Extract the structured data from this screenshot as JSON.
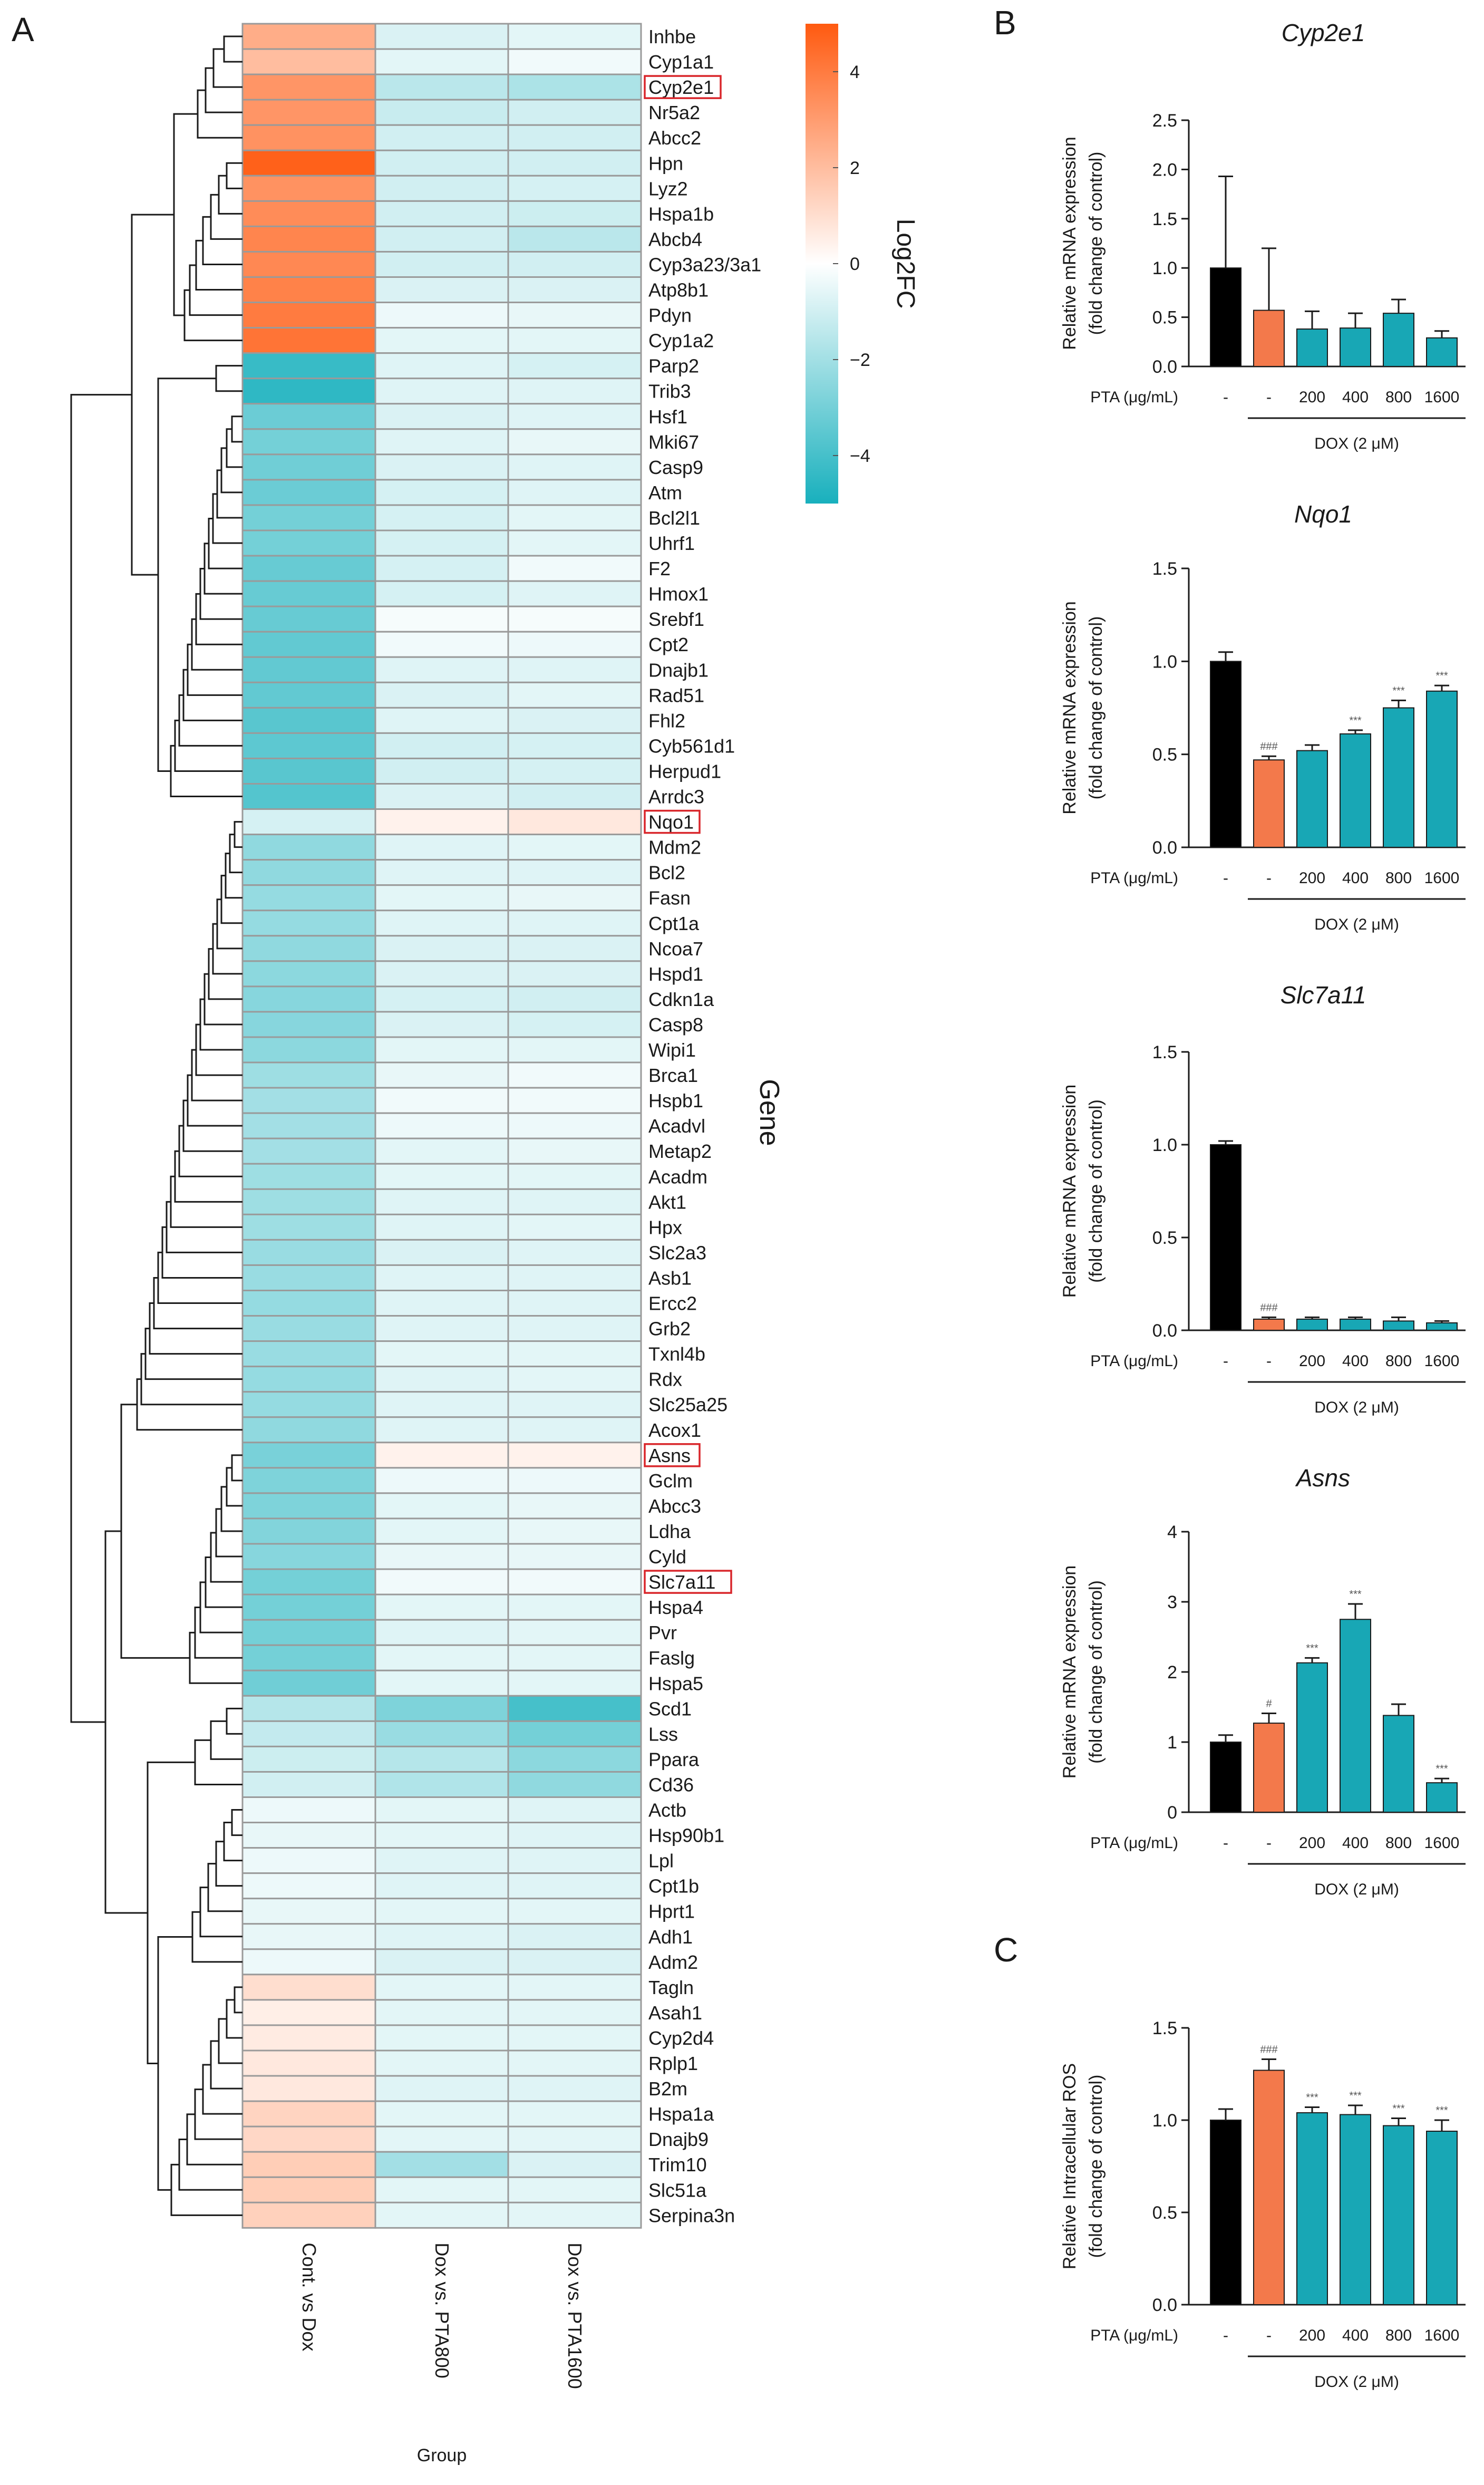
{
  "colors": {
    "black": "#000000",
    "dox": "#f3794b",
    "pta": "#18a7b5",
    "neg": "#18b0bd",
    "pos": "#ff5a10",
    "neutral": "#ffffff",
    "grid": "#9a9a9a",
    "highlight": "#d9262b"
  },
  "chart_data": [
    {
      "type": "heatmap",
      "panel_label": "A",
      "xlabel": "Group",
      "ylabel": "Gene",
      "legend_title": "Log2FC",
      "legend_range": [
        -5,
        5
      ],
      "legend_ticks": [
        "4",
        "2",
        "0",
        "−2",
        "−4"
      ],
      "columns": [
        "Cont. vs Dox",
        "Dox vs. PTA800",
        "Dox vs. PTA1600"
      ],
      "highlighted": [
        "Cyp2e1",
        "Nqo1",
        "Asns",
        "Slc7a11"
      ],
      "rows": [
        {
          "gene": "Inhbe",
          "values": [
            2.5,
            -0.8,
            -0.6
          ]
        },
        {
          "gene": "Cyp1a1",
          "values": [
            2.0,
            -0.6,
            -0.3
          ]
        },
        {
          "gene": "Cyp2e1",
          "values": [
            3.2,
            -1.5,
            -1.8
          ]
        },
        {
          "gene": "Nr5a2",
          "values": [
            3.2,
            -1.2,
            -1.0
          ]
        },
        {
          "gene": "Abcc2",
          "values": [
            3.3,
            -1.0,
            -1.0
          ]
        },
        {
          "gene": "Hpn",
          "values": [
            4.8,
            -1.0,
            -1.0
          ]
        },
        {
          "gene": "Lyz2",
          "values": [
            3.3,
            -1.0,
            -0.9
          ]
        },
        {
          "gene": "Hspa1b",
          "values": [
            3.5,
            -1.0,
            -1.1
          ]
        },
        {
          "gene": "Abcb4",
          "values": [
            3.7,
            -1.0,
            -1.5
          ]
        },
        {
          "gene": "Cyp3a23/3a1",
          "values": [
            3.6,
            -1.0,
            -1.0
          ]
        },
        {
          "gene": "Atp8b1",
          "values": [
            3.8,
            -0.8,
            -0.8
          ]
        },
        {
          "gene": "Pdyn",
          "values": [
            4.0,
            -0.4,
            -0.5
          ]
        },
        {
          "gene": "Cyp1a2",
          "values": [
            4.2,
            -0.6,
            -0.6
          ]
        },
        {
          "gene": "Parp2",
          "values": [
            -4.3,
            -0.7,
            -0.9
          ]
        },
        {
          "gene": "Trib3",
          "values": [
            -4.5,
            -0.7,
            -0.7
          ]
        },
        {
          "gene": "Hsf1",
          "values": [
            -3.2,
            -0.8,
            -0.7
          ]
        },
        {
          "gene": "Mki67",
          "values": [
            -3.0,
            -0.7,
            -0.5
          ]
        },
        {
          "gene": "Casp9",
          "values": [
            -3.1,
            -0.8,
            -0.7
          ]
        },
        {
          "gene": "Atm",
          "values": [
            -3.2,
            -0.9,
            -0.7
          ]
        },
        {
          "gene": "Bcl2l1",
          "values": [
            -3.0,
            -0.9,
            -0.6
          ]
        },
        {
          "gene": "Uhrf1",
          "values": [
            -3.0,
            -0.9,
            -0.6
          ]
        },
        {
          "gene": "F2",
          "values": [
            -3.3,
            -0.9,
            -0.3
          ]
        },
        {
          "gene": "Hmox1",
          "values": [
            -3.3,
            -0.9,
            -0.7
          ]
        },
        {
          "gene": "Srebf1",
          "values": [
            -3.3,
            -0.2,
            -0.2
          ]
        },
        {
          "gene": "Cpt2",
          "values": [
            -3.4,
            -0.3,
            -0.4
          ]
        },
        {
          "gene": "Dnajb1",
          "values": [
            -3.4,
            -0.7,
            -0.7
          ]
        },
        {
          "gene": "Rad51",
          "values": [
            -3.4,
            -0.8,
            -0.6
          ]
        },
        {
          "gene": "Fhl2",
          "values": [
            -3.6,
            -0.7,
            -0.8
          ]
        },
        {
          "gene": "Cyb561d1",
          "values": [
            -3.5,
            -1.0,
            -0.9
          ]
        },
        {
          "gene": "Herpud1",
          "values": [
            -3.6,
            -1.0,
            -0.9
          ]
        },
        {
          "gene": "Arrdc3",
          "values": [
            -3.7,
            -0.8,
            -1.0
          ]
        },
        {
          "gene": "Nqo1",
          "values": [
            -0.9,
            0.4,
            0.7
          ]
        },
        {
          "gene": "Mdm2",
          "values": [
            -2.4,
            -0.7,
            -0.6
          ]
        },
        {
          "gene": "Bcl2",
          "values": [
            -2.4,
            -0.7,
            -0.7
          ]
        },
        {
          "gene": "Fasn",
          "values": [
            -2.3,
            -0.6,
            -0.5
          ]
        },
        {
          "gene": "Cpt1a",
          "values": [
            -2.3,
            -0.7,
            -0.7
          ]
        },
        {
          "gene": "Ncoa7",
          "values": [
            -2.4,
            -0.8,
            -0.8
          ]
        },
        {
          "gene": "Hspd1",
          "values": [
            -2.5,
            -0.8,
            -0.8
          ]
        },
        {
          "gene": "Cdkn1a",
          "values": [
            -2.6,
            -0.9,
            -1.0
          ]
        },
        {
          "gene": "Casp8",
          "values": [
            -2.6,
            -0.8,
            -0.9
          ]
        },
        {
          "gene": "Wipi1",
          "values": [
            -2.5,
            -0.6,
            -0.6
          ]
        },
        {
          "gene": "Brca1",
          "values": [
            -2.1,
            -0.5,
            -0.3
          ]
        },
        {
          "gene": "Hspb1",
          "values": [
            -2.0,
            -0.3,
            -0.3
          ]
        },
        {
          "gene": "Acadvl",
          "values": [
            -2.0,
            -0.4,
            -0.4
          ]
        },
        {
          "gene": "Metap2",
          "values": [
            -2.0,
            -0.6,
            -0.5
          ]
        },
        {
          "gene": "Acadm",
          "values": [
            -2.1,
            -0.6,
            -0.6
          ]
        },
        {
          "gene": "Akt1",
          "values": [
            -2.1,
            -0.7,
            -0.7
          ]
        },
        {
          "gene": "Hpx",
          "values": [
            -2.1,
            -0.7,
            -0.6
          ]
        },
        {
          "gene": "Slc2a3",
          "values": [
            -2.2,
            -0.8,
            -0.7
          ]
        },
        {
          "gene": "Asb1",
          "values": [
            -2.2,
            -0.7,
            -0.7
          ]
        },
        {
          "gene": "Ercc2",
          "values": [
            -2.3,
            -0.7,
            -0.7
          ]
        },
        {
          "gene": "Grb2",
          "values": [
            -2.2,
            -0.7,
            -0.7
          ]
        },
        {
          "gene": "Txnl4b",
          "values": [
            -2.2,
            -0.6,
            -0.6
          ]
        },
        {
          "gene": "Rdx",
          "values": [
            -2.3,
            -0.7,
            -0.6
          ]
        },
        {
          "gene": "Slc25a25",
          "values": [
            -2.3,
            -0.7,
            -0.7
          ]
        },
        {
          "gene": "Acox1",
          "values": [
            -2.4,
            -0.7,
            -0.7
          ]
        },
        {
          "gene": "Asns",
          "values": [
            -2.9,
            0.4,
            0.4
          ]
        },
        {
          "gene": "Gclm",
          "values": [
            -2.8,
            -0.4,
            -0.4
          ]
        },
        {
          "gene": "Abcc3",
          "values": [
            -2.8,
            -0.6,
            -0.5
          ]
        },
        {
          "gene": "Ldha",
          "values": [
            -2.7,
            -0.6,
            -0.5
          ]
        },
        {
          "gene": "Cyld",
          "values": [
            -2.6,
            -0.5,
            -0.5
          ]
        },
        {
          "gene": "Slc7a11",
          "values": [
            -3.0,
            -0.3,
            -0.3
          ]
        },
        {
          "gene": "Hspa4",
          "values": [
            -3.0,
            -0.6,
            -0.6
          ]
        },
        {
          "gene": "Pvr",
          "values": [
            -3.0,
            -0.7,
            -0.6
          ]
        },
        {
          "gene": "Faslg",
          "values": [
            -3.0,
            -0.6,
            -0.6
          ]
        },
        {
          "gene": "Hspa5",
          "values": [
            -3.1,
            -0.6,
            -0.6
          ]
        },
        {
          "gene": "Scd1",
          "values": [
            -1.6,
            -2.8,
            -4.0
          ]
        },
        {
          "gene": "Lss",
          "values": [
            -1.3,
            -2.2,
            -3.0
          ]
        },
        {
          "gene": "Ppara",
          "values": [
            -1.1,
            -1.6,
            -2.5
          ]
        },
        {
          "gene": "Cd36",
          "values": [
            -1.0,
            -1.7,
            -2.4
          ]
        },
        {
          "gene": "Actb",
          "values": [
            -0.4,
            -0.6,
            -0.7
          ]
        },
        {
          "gene": "Hsp90b1",
          "values": [
            -0.5,
            -0.6,
            -0.7
          ]
        },
        {
          "gene": "Lpl",
          "values": [
            -0.4,
            -0.7,
            -0.7
          ]
        },
        {
          "gene": "Cpt1b",
          "values": [
            -0.4,
            -0.7,
            -0.7
          ]
        },
        {
          "gene": "Hprt1",
          "values": [
            -0.5,
            -0.6,
            -0.6
          ]
        },
        {
          "gene": "Adh1",
          "values": [
            -0.5,
            -0.7,
            -0.8
          ]
        },
        {
          "gene": "Adm2",
          "values": [
            -0.4,
            -0.8,
            -0.8
          ]
        },
        {
          "gene": "Tagln",
          "values": [
            1.0,
            -0.6,
            -0.6
          ]
        },
        {
          "gene": "Asah1",
          "values": [
            0.5,
            -0.6,
            -0.6
          ]
        },
        {
          "gene": "Cyp2d4",
          "values": [
            0.6,
            -0.6,
            -0.6
          ]
        },
        {
          "gene": "Rplp1",
          "values": [
            0.7,
            -0.6,
            -0.6
          ]
        },
        {
          "gene": "B2m",
          "values": [
            0.7,
            -0.7,
            -0.7
          ]
        },
        {
          "gene": "Hspa1a",
          "values": [
            1.3,
            -0.6,
            -0.6
          ]
        },
        {
          "gene": "Dnajb9",
          "values": [
            1.2,
            -0.6,
            -0.6
          ]
        },
        {
          "gene": "Trim10",
          "values": [
            1.5,
            -2.0,
            -0.8
          ]
        },
        {
          "gene": "Slc51a",
          "values": [
            1.5,
            -0.6,
            -0.6
          ]
        },
        {
          "gene": "Serpina3n",
          "values": [
            1.4,
            -0.6,
            -0.6
          ]
        }
      ]
    },
    {
      "type": "bar",
      "panel_label": "B",
      "title": "Cyp2e1",
      "ylabel_lines": [
        "Relative mRNA expression",
        "(fold change of control)"
      ],
      "yticks": [
        "0.0",
        "0.5",
        "1.0",
        "1.5",
        "2.0",
        "2.5"
      ],
      "ylim": [
        0,
        2.5
      ],
      "xrow_label": "PTA (μg/mL)",
      "categories": [
        "-",
        "-",
        "200",
        "400",
        "800",
        "1600"
      ],
      "group_label": "DOX (2 μM)",
      "values": [
        1.0,
        0.57,
        0.38,
        0.39,
        0.54,
        0.29
      ],
      "errors": [
        0.93,
        0.63,
        0.18,
        0.15,
        0.14,
        0.07
      ],
      "sig": [
        "",
        "",
        "",
        "",
        "",
        ""
      ]
    },
    {
      "type": "bar",
      "panel_label": "",
      "title": "Nqo1",
      "ylabel_lines": [
        "Relative mRNA expression",
        "(fold change of control)"
      ],
      "yticks": [
        "0.0",
        "0.5",
        "1.0",
        "1.5"
      ],
      "ylim": [
        0,
        1.5
      ],
      "xrow_label": "PTA (μg/mL)",
      "categories": [
        "-",
        "-",
        "200",
        "400",
        "800",
        "1600"
      ],
      "group_label": "DOX (2 μM)",
      "values": [
        1.0,
        0.47,
        0.52,
        0.61,
        0.75,
        0.84
      ],
      "errors": [
        0.05,
        0.02,
        0.03,
        0.02,
        0.04,
        0.03
      ],
      "sig": [
        "",
        "###",
        "",
        "***",
        "***",
        "***"
      ]
    },
    {
      "type": "bar",
      "panel_label": "",
      "title": "Slc7a11",
      "ylabel_lines": [
        "Relative mRNA expression",
        "(fold change of control)"
      ],
      "yticks": [
        "0.0",
        "0.5",
        "1.0",
        "1.5"
      ],
      "ylim": [
        0,
        1.5
      ],
      "xrow_label": "PTA (μg/mL)",
      "categories": [
        "-",
        "-",
        "200",
        "400",
        "800",
        "1600"
      ],
      "group_label": "DOX (2 μM)",
      "values": [
        1.0,
        0.06,
        0.06,
        0.06,
        0.05,
        0.04
      ],
      "errors": [
        0.02,
        0.01,
        0.01,
        0.01,
        0.02,
        0.01
      ],
      "sig": [
        "",
        "###",
        "",
        "",
        "",
        ""
      ]
    },
    {
      "type": "bar",
      "panel_label": "",
      "title": "Asns",
      "ylabel_lines": [
        "Relative mRNA expression",
        "(fold change of control)"
      ],
      "yticks": [
        "0",
        "1",
        "2",
        "3",
        "4"
      ],
      "ylim": [
        0,
        4
      ],
      "xrow_label": "PTA (μg/mL)",
      "categories": [
        "-",
        "-",
        "200",
        "400",
        "800",
        "1600"
      ],
      "group_label": "DOX (2 μM)",
      "values": [
        1.0,
        1.27,
        2.13,
        2.75,
        1.38,
        0.42
      ],
      "errors": [
        0.1,
        0.14,
        0.07,
        0.22,
        0.16,
        0.06
      ],
      "sig": [
        "",
        "#",
        "***",
        "***",
        "",
        "***"
      ]
    },
    {
      "type": "bar",
      "panel_label": "C",
      "title": "",
      "ylabel_lines": [
        "Relative Intracellular ROS",
        "(fold change of control)"
      ],
      "yticks": [
        "0.0",
        "0.5",
        "1.0",
        "1.5"
      ],
      "ylim": [
        0,
        1.5
      ],
      "xrow_label": "PTA (μg/mL)",
      "categories": [
        "-",
        "-",
        "200",
        "400",
        "800",
        "1600"
      ],
      "group_label": "DOX (2 μM)",
      "values": [
        1.0,
        1.27,
        1.04,
        1.03,
        0.97,
        0.94
      ],
      "errors": [
        0.06,
        0.06,
        0.03,
        0.05,
        0.04,
        0.06
      ],
      "sig": [
        "",
        "###",
        "***",
        "***",
        "***",
        "***"
      ]
    }
  ]
}
